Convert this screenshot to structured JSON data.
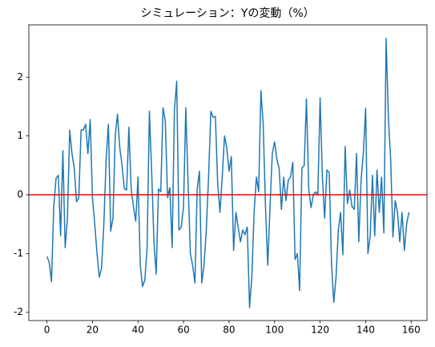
{
  "chart_data": {
    "type": "line",
    "title": "シミュレーション：Yの変動（%）",
    "x": [
      0,
      1,
      2,
      3,
      4,
      5,
      6,
      7,
      8,
      9,
      10,
      11,
      12,
      13,
      14,
      15,
      16,
      17,
      18,
      19,
      20,
      21,
      22,
      23,
      24,
      25,
      26,
      27,
      28,
      29,
      30,
      31,
      32,
      33,
      34,
      35,
      36,
      37,
      38,
      39,
      40,
      41,
      42,
      43,
      44,
      45,
      46,
      47,
      48,
      49,
      50,
      51,
      52,
      53,
      54,
      55,
      56,
      57,
      58,
      59,
      60,
      61,
      62,
      63,
      64,
      65,
      66,
      67,
      68,
      69,
      70,
      71,
      72,
      73,
      74,
      75,
      76,
      77,
      78,
      79,
      80,
      81,
      82,
      83,
      84,
      85,
      86,
      87,
      88,
      89,
      90,
      91,
      92,
      93,
      94,
      95,
      96,
      97,
      98,
      99,
      100,
      101,
      102,
      103,
      104,
      105,
      106,
      107,
      108,
      109,
      110,
      111,
      112,
      113,
      114,
      115,
      116,
      117,
      118,
      119,
      120,
      121,
      122,
      123,
      124,
      125,
      126,
      127,
      128,
      129,
      130,
      131,
      132,
      133,
      134,
      135,
      136,
      137,
      138,
      139,
      140,
      141,
      142,
      143,
      144,
      145,
      146,
      147,
      148,
      149,
      150,
      151,
      152,
      153,
      154,
      155,
      156,
      157,
      158,
      159
    ],
    "series": [
      {
        "color": "#1f77b4",
        "values": [
          -1.05,
          -1.15,
          -1.48,
          -0.2,
          0.28,
          0.33,
          -0.7,
          0.75,
          -0.9,
          -0.4,
          1.1,
          0.7,
          0.45,
          -0.12,
          -0.05,
          1.1,
          1.1,
          1.2,
          0.7,
          1.28,
          -0.05,
          -0.5,
          -1.0,
          -1.4,
          -1.25,
          -0.5,
          0.6,
          1.2,
          -0.62,
          -0.4,
          1.0,
          1.37,
          0.8,
          0.5,
          0.1,
          0.08,
          1.15,
          0.1,
          -0.2,
          -0.45,
          0.3,
          -1.2,
          -1.56,
          -1.45,
          -0.9,
          1.42,
          0.4,
          -0.8,
          -1.35,
          0.1,
          0.05,
          1.48,
          1.25,
          -0.05,
          0.12,
          -0.9,
          1.45,
          1.93,
          -0.6,
          -0.55,
          -0.2,
          1.48,
          0.2,
          -1.0,
          -1.2,
          -1.5,
          0.1,
          0.4,
          -1.5,
          -1.2,
          -0.6,
          0.3,
          1.42,
          1.32,
          1.33,
          0.2,
          -0.3,
          0.3,
          1.0,
          0.8,
          0.4,
          0.65,
          -0.95,
          -0.3,
          -0.55,
          -0.8,
          -0.6,
          -0.68,
          -0.55,
          -1.92,
          -1.4,
          -0.3,
          0.3,
          0.05,
          1.77,
          1.2,
          -0.2,
          -1.2,
          -0.2,
          0.7,
          0.9,
          0.6,
          0.45,
          -0.25,
          0.3,
          -0.1,
          0.25,
          0.3,
          0.55,
          -1.1,
          -1.0,
          -1.63,
          0.45,
          0.5,
          1.63,
          0.1,
          -0.22,
          0.0,
          0.05,
          0.0,
          1.65,
          0.3,
          -0.4,
          0.42,
          0.38,
          -1.15,
          -1.83,
          -1.4,
          -0.6,
          -0.3,
          -1.02,
          0.82,
          -0.15,
          0.08,
          -0.2,
          -0.25,
          0.7,
          -0.8,
          0.25,
          0.72,
          1.47,
          -1.0,
          -0.7,
          0.33,
          -0.7,
          0.42,
          -0.3,
          0.3,
          -0.65,
          2.66,
          1.3,
          0.6,
          -0.72,
          -0.1,
          -0.3,
          -0.8,
          -0.3,
          -0.95,
          -0.5,
          -0.3
        ]
      }
    ],
    "reference_line": {
      "value": 0,
      "color": "#ff0000"
    },
    "xlim": [
      -7.95,
      166.95
    ],
    "xticks": [
      0,
      20,
      40,
      60,
      80,
      100,
      120,
      140,
      160
    ],
    "ylim": [
      -2.14,
      2.89
    ],
    "yticks": [
      -2,
      -1,
      0,
      1,
      2
    ],
    "grid": false
  }
}
